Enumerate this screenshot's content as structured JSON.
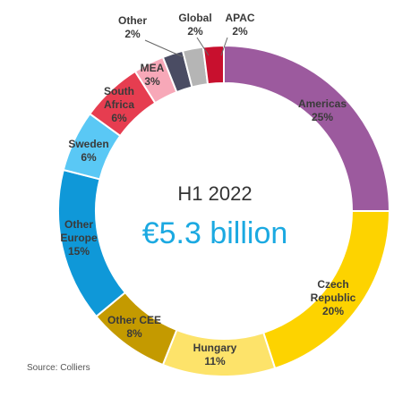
{
  "chart_data": {
    "type": "pie",
    "center_title": "H1 2022",
    "center_value": "€5.3 billion",
    "source": "Source: Colliers",
    "slices": [
      {
        "lines": [
          "Americas"
        ],
        "pct_label": "25%",
        "value": 25,
        "color": "#9c5a9e",
        "text_color": "#3a3a3a"
      },
      {
        "lines": [
          "Czech",
          "Republic"
        ],
        "pct_label": "20%",
        "value": 20,
        "color": "#fdd300",
        "text_color": "#3a3a3a"
      },
      {
        "lines": [
          "Hungary"
        ],
        "pct_label": "11%",
        "value": 11,
        "color": "#fde36a",
        "text_color": "#3a3a3a"
      },
      {
        "lines": [
          "Other CEE"
        ],
        "pct_label": "8%",
        "value": 8,
        "color": "#c49a00",
        "text_color": "#3a3a3a"
      },
      {
        "lines": [
          "Other",
          "Europe"
        ],
        "pct_label": "15%",
        "value": 15,
        "color": "#0f98d8",
        "text_color": "#3a3a3a"
      },
      {
        "lines": [
          "Sweden"
        ],
        "pct_label": "6%",
        "value": 6,
        "color": "#5ac8f5",
        "text_color": "#3a3a3a"
      },
      {
        "lines": [
          "South",
          "Africa"
        ],
        "pct_label": "6%",
        "value": 6,
        "color": "#e63d50",
        "text_color": "#3a3a3a"
      },
      {
        "lines": [
          "MEA"
        ],
        "pct_label": "3%",
        "value": 3,
        "color": "#f7a8b8",
        "text_color": "#3a3a3a"
      },
      {
        "lines": [
          "Other"
        ],
        "pct_label": "2%",
        "value": 2,
        "color": "#4a4c63",
        "text_color": "#3a3a3a"
      },
      {
        "lines": [
          "Global"
        ],
        "pct_label": "2%",
        "value": 2,
        "color": "#b5b5b5",
        "text_color": "#3a3a3a"
      },
      {
        "lines": [
          "APAC"
        ],
        "pct_label": "2%",
        "value": 2,
        "color": "#c8102e",
        "text_color": "#3a3a3a"
      }
    ]
  }
}
